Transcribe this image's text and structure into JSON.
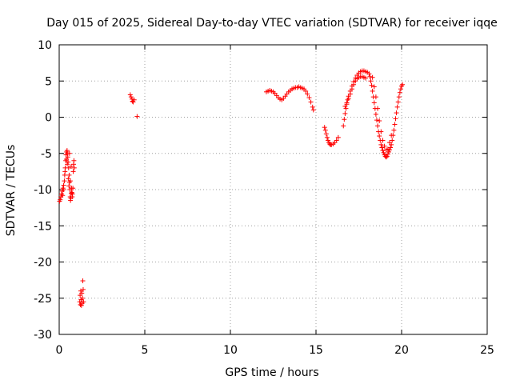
{
  "chart_data": {
    "type": "scatter",
    "title": "Day 015 of 2025, Sidereal Day-to-day VTEC variation (SDTVAR) for receiver iqqe",
    "xlabel": "GPS time / hours",
    "ylabel": "SDTVAR / TECUs",
    "xlim": [
      0,
      25
    ],
    "ylim": [
      -30,
      10
    ],
    "xticks": [
      0,
      5,
      10,
      15,
      20,
      25
    ],
    "yticks": [
      -30,
      -25,
      -20,
      -15,
      -10,
      -5,
      0,
      5,
      10
    ],
    "xtick_labels": [
      "0",
      "5",
      "10",
      "15",
      "20",
      "25"
    ],
    "ytick_labels": [
      "-30",
      "-25",
      "-20",
      "-15",
      "-10",
      "-5",
      "0",
      "5",
      "10"
    ],
    "grid": true,
    "marker": "+",
    "series": [
      {
        "name": "SDTVAR",
        "color": "#ff0000",
        "points": [
          [
            0.02,
            -11.6
          ],
          [
            0.06,
            -11.4
          ],
          [
            0.1,
            -11.0
          ],
          [
            0.14,
            -10.6
          ],
          [
            0.18,
            -10.2
          ],
          [
            0.22,
            -9.8
          ],
          [
            0.26,
            -9.4
          ],
          [
            0.3,
            -8.8
          ],
          [
            0.32,
            -8.0
          ],
          [
            0.35,
            -7.0
          ],
          [
            0.38,
            -6.0
          ],
          [
            0.4,
            -5.2
          ],
          [
            0.43,
            -4.8
          ],
          [
            0.46,
            -4.6
          ],
          [
            0.48,
            -5.0
          ],
          [
            0.5,
            -5.5
          ],
          [
            0.52,
            -6.2
          ],
          [
            0.55,
            -7.0
          ],
          [
            0.58,
            -8.0
          ],
          [
            0.6,
            -9.0
          ],
          [
            0.62,
            -10.0
          ],
          [
            0.64,
            -11.0
          ],
          [
            0.66,
            -11.5
          ],
          [
            0.68,
            -11.2
          ],
          [
            0.7,
            -10.5
          ],
          [
            0.72,
            -9.8
          ],
          [
            0.74,
            -10.4
          ],
          [
            0.76,
            -11.0
          ],
          [
            0.78,
            -10.6
          ],
          [
            0.8,
            -9.8
          ],
          [
            0.82,
            -7.5
          ],
          [
            0.84,
            -6.5
          ],
          [
            0.86,
            -6.0
          ],
          [
            0.88,
            -7.0
          ],
          [
            0.2,
            -10.8
          ],
          [
            0.25,
            -10.0
          ],
          [
            0.34,
            -7.5
          ],
          [
            0.42,
            -5.8
          ],
          [
            0.47,
            -6.5
          ],
          [
            0.53,
            -8.5
          ],
          [
            0.57,
            -9.5
          ],
          [
            0.6,
            -5.0
          ],
          [
            0.65,
            -8.8
          ],
          [
            0.7,
            -6.8
          ],
          [
            1.2,
            -25.5
          ],
          [
            1.22,
            -24.6
          ],
          [
            1.24,
            -25.9
          ],
          [
            1.26,
            -24.0
          ],
          [
            1.28,
            -25.2
          ],
          [
            1.3,
            -26.0
          ],
          [
            1.32,
            -24.3
          ],
          [
            1.34,
            -25.7
          ],
          [
            1.36,
            -25.0
          ],
          [
            1.38,
            -22.6
          ],
          [
            1.4,
            -23.8
          ],
          [
            1.42,
            -25.5
          ],
          [
            4.15,
            3.1
          ],
          [
            4.2,
            2.8
          ],
          [
            4.25,
            2.5
          ],
          [
            4.28,
            2.2
          ],
          [
            4.32,
            2.1
          ],
          [
            4.38,
            2.4
          ],
          [
            4.55,
            0.1
          ],
          [
            12.1,
            3.5
          ],
          [
            12.2,
            3.6
          ],
          [
            12.3,
            3.7
          ],
          [
            12.4,
            3.6
          ],
          [
            12.5,
            3.5
          ],
          [
            12.6,
            3.3
          ],
          [
            12.7,
            3.0
          ],
          [
            12.8,
            2.7
          ],
          [
            12.9,
            2.5
          ],
          [
            13.0,
            2.4
          ],
          [
            13.1,
            2.6
          ],
          [
            13.2,
            2.9
          ],
          [
            13.3,
            3.2
          ],
          [
            13.4,
            3.5
          ],
          [
            13.5,
            3.7
          ],
          [
            13.6,
            3.9
          ],
          [
            13.7,
            4.0
          ],
          [
            13.8,
            4.1
          ],
          [
            13.9,
            4.1
          ],
          [
            14.0,
            4.2
          ],
          [
            14.1,
            4.1
          ],
          [
            14.2,
            4.0
          ],
          [
            14.3,
            3.9
          ],
          [
            14.4,
            3.6
          ],
          [
            14.5,
            3.2
          ],
          [
            14.6,
            2.7
          ],
          [
            14.7,
            2.1
          ],
          [
            14.8,
            1.4
          ],
          [
            14.85,
            1.0
          ],
          [
            15.5,
            -1.4
          ],
          [
            15.55,
            -1.8
          ],
          [
            15.6,
            -2.3
          ],
          [
            15.65,
            -2.8
          ],
          [
            15.7,
            -3.2
          ],
          [
            15.75,
            -3.5
          ],
          [
            15.8,
            -3.7
          ],
          [
            15.85,
            -3.8
          ],
          [
            15.9,
            -3.8
          ],
          [
            16.0,
            -3.7
          ],
          [
            16.1,
            -3.5
          ],
          [
            16.2,
            -3.2
          ],
          [
            16.3,
            -2.8
          ],
          [
            16.6,
            -1.2
          ],
          [
            16.65,
            -0.3
          ],
          [
            16.7,
            0.5
          ],
          [
            16.75,
            1.2
          ],
          [
            16.8,
            1.8
          ],
          [
            16.85,
            2.4
          ],
          [
            16.9,
            2.9
          ],
          [
            17.0,
            3.6
          ],
          [
            17.1,
            4.3
          ],
          [
            17.2,
            4.9
          ],
          [
            17.3,
            5.4
          ],
          [
            17.4,
            5.8
          ],
          [
            17.5,
            6.1
          ],
          [
            17.6,
            6.3
          ],
          [
            17.7,
            6.4
          ],
          [
            17.8,
            6.4
          ],
          [
            17.9,
            6.3
          ],
          [
            18.0,
            6.2
          ],
          [
            18.1,
            6.0
          ],
          [
            18.15,
            5.6
          ],
          [
            16.7,
            1.5
          ],
          [
            16.8,
            2.0
          ],
          [
            16.9,
            2.6
          ],
          [
            17.0,
            3.2
          ],
          [
            17.1,
            3.9
          ],
          [
            17.2,
            4.5
          ],
          [
            17.3,
            5.0
          ],
          [
            17.4,
            5.3
          ],
          [
            17.5,
            5.5
          ],
          [
            17.6,
            5.6
          ],
          [
            17.7,
            5.6
          ],
          [
            17.8,
            5.5
          ],
          [
            17.9,
            5.4
          ],
          [
            18.2,
            5.0
          ],
          [
            18.25,
            4.4
          ],
          [
            18.3,
            3.6
          ],
          [
            18.35,
            2.8
          ],
          [
            18.4,
            2.0
          ],
          [
            18.45,
            1.2
          ],
          [
            18.5,
            0.4
          ],
          [
            18.55,
            -0.4
          ],
          [
            18.6,
            -1.2
          ],
          [
            18.65,
            -2.0
          ],
          [
            18.7,
            -2.6
          ],
          [
            18.75,
            -3.2
          ],
          [
            18.8,
            -3.8
          ],
          [
            18.85,
            -4.2
          ],
          [
            18.9,
            -4.6
          ],
          [
            18.95,
            -4.9
          ],
          [
            19.0,
            -5.2
          ],
          [
            19.05,
            -5.4
          ],
          [
            19.1,
            -5.5
          ],
          [
            19.15,
            -5.4
          ],
          [
            19.2,
            -5.1
          ],
          [
            19.25,
            -4.8
          ],
          [
            19.3,
            -4.5
          ],
          [
            19.35,
            -4.2
          ],
          [
            19.4,
            -3.8
          ],
          [
            19.45,
            -3.2
          ],
          [
            19.5,
            -2.5
          ],
          [
            19.55,
            -1.8
          ],
          [
            19.6,
            -1.0
          ],
          [
            19.65,
            -0.2
          ],
          [
            19.7,
            0.6
          ],
          [
            19.75,
            1.4
          ],
          [
            19.8,
            2.1
          ],
          [
            19.85,
            2.8
          ],
          [
            19.9,
            3.4
          ],
          [
            19.95,
            3.9
          ],
          [
            20.0,
            4.3
          ],
          [
            20.05,
            4.5
          ],
          [
            18.3,
            5.5
          ],
          [
            18.4,
            4.2
          ],
          [
            18.5,
            2.8
          ],
          [
            18.6,
            1.2
          ],
          [
            18.7,
            -0.5
          ],
          [
            18.8,
            -2.0
          ],
          [
            18.9,
            -3.2
          ],
          [
            19.0,
            -4.0
          ],
          [
            19.1,
            -4.5
          ],
          [
            19.2,
            -4.4
          ],
          [
            19.3,
            -3.5
          ],
          [
            19.4,
            -2.5
          ]
        ]
      }
    ]
  }
}
